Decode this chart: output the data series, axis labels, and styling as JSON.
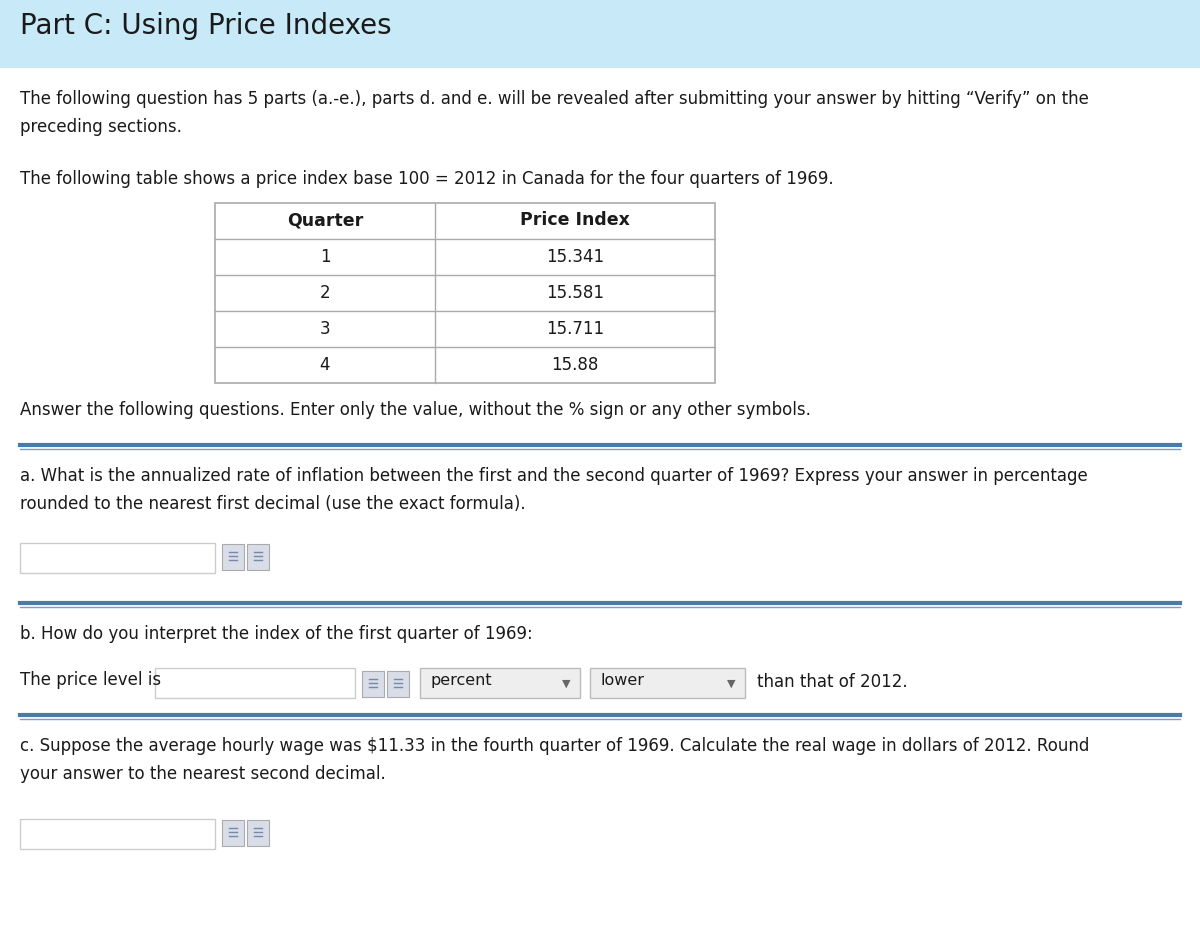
{
  "title": "Part C: Using Price Indexes",
  "title_bg_color": "#c8eaf8",
  "title_text_color": "#1a1a1a",
  "body_bg_color": "#ffffff",
  "intro_text": "The following question has 5 parts (a.-e.), parts d. and e. will be revealed after submitting your answer by hitting “Verify” on the\npreceding sections.",
  "table_intro": "The following table shows a price index base 100 = 2012 in Canada for the four quarters of 1969.",
  "table_headers": [
    "Quarter",
    "Price Index"
  ],
  "table_rows": [
    [
      "1",
      "15.341"
    ],
    [
      "2",
      "15.581"
    ],
    [
      "3",
      "15.711"
    ],
    [
      "4",
      "15.88"
    ]
  ],
  "answer_instruction": "Answer the following questions. Enter only the value, without the % sign or any other symbols.",
  "q_a_text": "a. What is the annualized rate of inflation between the first and the second quarter of 1969? Express your answer in percentage\nrounded to the nearest first decimal (use the exact formula).",
  "q_b_label": "b. How do you interpret the index of the first quarter of 1969:",
  "q_b_fill": "The price level is",
  "q_b_dropdown1": "percent",
  "q_b_dropdown2": "lower",
  "q_b_end": "than that of 2012.",
  "q_c_text": "c. Suppose the average hourly wage was $11.33 in the fourth quarter of 1969. Calculate the real wage in dollars of 2012. Round\nyour answer to the nearest second decimal.",
  "text_color_dark": "#1a1a1a",
  "text_color_blue": "#4a7aaa",
  "divider_color_thick": "#4a7aaa",
  "divider_color_thin": "#7aa0c0",
  "table_border_color": "#aaaaaa",
  "input_box_border": "#cccccc",
  "dropdown_bg": "#eeeeee",
  "dropdown_border": "#bbbbbb",
  "icon_bg": "#d8dde8",
  "icon_border": "#aaaaaa"
}
